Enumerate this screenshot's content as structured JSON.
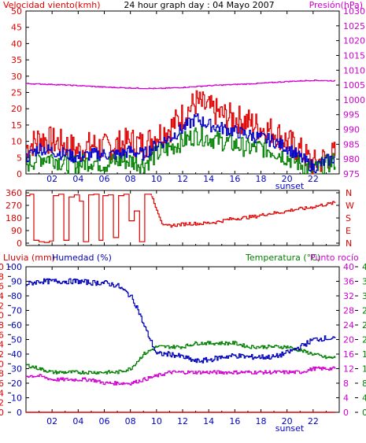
{
  "page": {
    "date_title": "24 hour graph day : 04 Mayo 2007"
  },
  "colors": {
    "wind": "#e00000",
    "wind_avg": "#0000cc",
    "wind_gust_green": "#008000",
    "pressure": "#d000d0",
    "direction": "#e00000",
    "rain": "#e00000",
    "humidity": "#0000bb",
    "temperature": "#008000",
    "dew_point": "#d000d0",
    "axis_left_red": "#e00000",
    "axis_left_blue": "#0000bb",
    "axis_right_green": "#008000",
    "axis_right_magenta": "#d000d0"
  },
  "chart_data": [
    {
      "type": "line",
      "title": "24 hour graph day : 04 Mayo 2007",
      "ylabel": "Velocidad viento(kmh)",
      "y2label": "Presión(hPa)",
      "x_ticks": [
        "02",
        "04",
        "06",
        "08",
        "10",
        "12",
        "14",
        "16",
        "18",
        "20",
        "22"
      ],
      "x_annotation": "sunset",
      "xlim_hours": [
        0,
        24
      ],
      "ylim": [
        0,
        50
      ],
      "y_ticks": [
        0,
        5,
        10,
        15,
        20,
        25,
        30,
        35,
        40,
        45,
        50
      ],
      "y2lim": [
        975,
        1030
      ],
      "y2_ticks": [
        975,
        980,
        985,
        990,
        995,
        1000,
        1005,
        1010,
        1015,
        1020,
        1025,
        1030
      ],
      "grid": false,
      "series": [
        {
          "color": "red",
          "hours": [
            0,
            1,
            2,
            3,
            4,
            5,
            6,
            7,
            8,
            9,
            10,
            11,
            12,
            13,
            14,
            15,
            16,
            17,
            18,
            19,
            20,
            21,
            22,
            23,
            23.7
          ],
          "values": [
            8,
            11,
            10,
            9,
            7,
            9,
            8,
            9,
            10,
            9,
            12,
            14,
            18,
            22,
            20,
            18,
            17,
            16,
            14,
            13,
            10,
            7,
            3,
            5,
            6
          ]
        },
        {
          "color": "blue",
          "hours": [
            0,
            1,
            2,
            3,
            4,
            5,
            6,
            7,
            8,
            9,
            10,
            11,
            12,
            13,
            14,
            15,
            16,
            17,
            18,
            19,
            20,
            21,
            22,
            23,
            23.7
          ],
          "values": [
            5,
            8,
            7,
            6,
            5,
            6,
            6,
            6,
            7,
            6,
            9,
            11,
            14,
            17,
            15,
            14,
            13,
            12,
            11,
            10,
            8,
            5,
            2,
            4,
            5
          ]
        },
        {
          "color": "green",
          "hours": [
            0,
            1,
            2,
            3,
            4,
            5,
            6,
            7,
            8,
            9,
            10,
            11,
            12,
            13,
            14,
            15,
            16,
            17,
            18,
            19,
            20,
            21,
            22,
            23,
            23.7
          ],
          "values": [
            3,
            5,
            5,
            3,
            3,
            4,
            3,
            4,
            4,
            3,
            6,
            8,
            10,
            12,
            11,
            10,
            9,
            8,
            8,
            7,
            5,
            3,
            1,
            3,
            4
          ]
        },
        {
          "color": "magenta",
          "axis": "right",
          "hours": [
            0,
            2,
            4,
            6,
            8,
            10,
            12,
            14,
            16,
            18,
            20,
            22,
            23.7
          ],
          "values": [
            1005.5,
            1005.2,
            1004.8,
            1004.3,
            1004.0,
            1003.8,
            1004.2,
            1004.8,
            1005.2,
            1005.6,
            1006.2,
            1006.6,
            1006.4
          ]
        }
      ]
    },
    {
      "type": "line",
      "ylim": [
        0,
        360
      ],
      "y_ticks": [
        0,
        90,
        180,
        270,
        360
      ],
      "y2_ticks": [
        "N",
        "E",
        "S",
        "W",
        "N"
      ],
      "x_ticks": [
        "02",
        "04",
        "06",
        "08",
        "10",
        "12",
        "14",
        "16",
        "18",
        "20",
        "22"
      ],
      "series": [
        {
          "color": "red",
          "hours": [
            0,
            0.3,
            0.6,
            1,
            1.4,
            1.8,
            2.1,
            2.5,
            2.9,
            3.3,
            3.7,
            4.1,
            4.4,
            4.8,
            5.2,
            5.6,
            5.9,
            6.3,
            6.7,
            7.1,
            7.5,
            7.9,
            8.3,
            8.7,
            9.1,
            9.6,
            10.5,
            11.5,
            12.5,
            13.5,
            14.5,
            15.5,
            16.5,
            17.5,
            18.5,
            19.5,
            20.5,
            21.5,
            22.5,
            23.2,
            23.7
          ],
          "values": [
            340,
            350,
            20,
            10,
            5,
            15,
            340,
            350,
            20,
            330,
            345,
            300,
            10,
            345,
            350,
            20,
            340,
            345,
            40,
            340,
            350,
            160,
            230,
            10,
            350,
            340,
            120,
            130,
            140,
            140,
            150,
            170,
            180,
            190,
            210,
            220,
            240,
            250,
            270,
            280,
            290
          ]
        }
      ]
    },
    {
      "type": "line",
      "ylabel": "Lluvia (mm)",
      "ylabel2": "Humedad (%)",
      "y2label": "Temperatura (°C)",
      "y2label2": "Punto rocío",
      "x_ticks": [
        "02",
        "04",
        "06",
        "08",
        "10",
        "12",
        "14",
        "16",
        "18",
        "20",
        "22"
      ],
      "x_annotation": "sunset",
      "rain_ticks": [
        0,
        2,
        4,
        6,
        8,
        10,
        12,
        14,
        16,
        18,
        20,
        22,
        24,
        26,
        28,
        30
      ],
      "humidity_ticks": [
        0,
        10,
        20,
        30,
        40,
        50,
        60,
        70,
        80,
        90,
        100
      ],
      "temp_ticks": [
        0,
        4,
        8,
        12,
        16,
        20,
        24,
        28,
        32,
        36,
        40
      ],
      "series": [
        {
          "color": "red",
          "axis": "rain",
          "hours": [
            0,
            23.7
          ],
          "values": [
            0,
            0
          ]
        },
        {
          "color": "blue",
          "axis": "humidity",
          "hours": [
            0,
            1,
            2,
            3,
            4,
            5,
            6,
            7,
            8,
            8.5,
            9,
            9.5,
            10,
            11,
            12,
            13,
            14,
            15,
            16,
            17,
            18,
            19,
            20,
            21,
            22,
            23,
            23.7
          ],
          "values": [
            88,
            90,
            90,
            90,
            90,
            89,
            89,
            87,
            80,
            72,
            60,
            50,
            40,
            40,
            38,
            35,
            36,
            38,
            39,
            38,
            38,
            38,
            41,
            45,
            50,
            51,
            50
          ]
        },
        {
          "color": "green",
          "axis": "temp",
          "hours": [
            0,
            1,
            2,
            3,
            4,
            5,
            6,
            7,
            8,
            9,
            10,
            11,
            12,
            13,
            14,
            15,
            16,
            17,
            18,
            19,
            20,
            21,
            22,
            23,
            23.7
          ],
          "values": [
            13,
            12,
            11,
            11,
            11,
            11,
            11,
            11,
            12,
            16,
            18,
            18,
            18,
            19,
            19,
            19,
            19,
            18,
            18,
            18,
            18,
            17,
            16,
            15,
            15
          ]
        },
        {
          "color": "magenta",
          "axis": "temp",
          "hours": [
            0,
            1,
            2,
            3,
            4,
            5,
            6,
            7,
            8,
            9,
            10,
            11,
            12,
            13,
            14,
            15,
            16,
            17,
            18,
            19,
            20,
            21,
            22,
            23,
            23.7
          ],
          "values": [
            10,
            10,
            9,
            9,
            9,
            9,
            8,
            8,
            8,
            9,
            10,
            11,
            11,
            11,
            11,
            11,
            11,
            11,
            11,
            11,
            11,
            11,
            12,
            12,
            12
          ]
        }
      ]
    }
  ]
}
